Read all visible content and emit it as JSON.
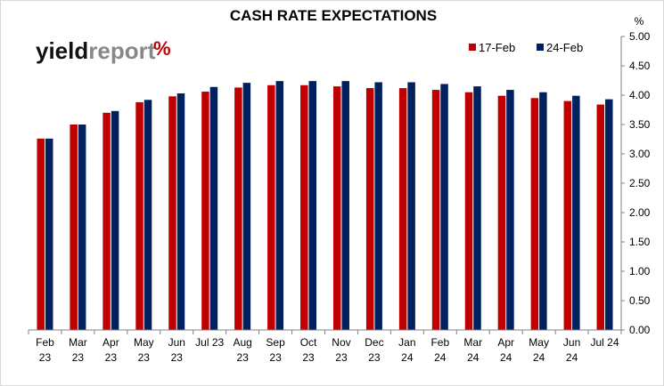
{
  "chart_data": {
    "type": "bar",
    "title": "CASH RATE EXPECTATIONS",
    "unit_label": "%",
    "logo": {
      "part1": "yield",
      "part2": "report",
      "mark": "%"
    },
    "categories": [
      [
        "Feb",
        "23"
      ],
      [
        "Mar",
        "23"
      ],
      [
        "Apr",
        "23"
      ],
      [
        "May",
        "23"
      ],
      [
        "Jun",
        "23"
      ],
      [
        "Jul 23",
        ""
      ],
      [
        "Aug",
        "23"
      ],
      [
        "Sep",
        "23"
      ],
      [
        "Oct",
        "23"
      ],
      [
        "Nov",
        "23"
      ],
      [
        "Dec",
        "23"
      ],
      [
        "Jan",
        "24"
      ],
      [
        "Feb",
        "24"
      ],
      [
        "Mar",
        "24"
      ],
      [
        "Apr",
        "24"
      ],
      [
        "May",
        "24"
      ],
      [
        "Jun",
        "24"
      ],
      [
        "Jul 24",
        ""
      ]
    ],
    "series": [
      {
        "name": "17-Feb",
        "color": "#c00000",
        "values": [
          3.26,
          3.5,
          3.7,
          3.88,
          3.98,
          4.06,
          4.13,
          4.17,
          4.17,
          4.15,
          4.12,
          4.12,
          4.09,
          4.05,
          3.99,
          3.95,
          3.9,
          3.84
        ]
      },
      {
        "name": "24-Feb",
        "color": "#002060",
        "values": [
          3.26,
          3.5,
          3.73,
          3.92,
          4.03,
          4.14,
          4.21,
          4.24,
          4.24,
          4.24,
          4.22,
          4.22,
          4.19,
          4.15,
          4.09,
          4.05,
          3.99,
          3.93
        ]
      }
    ],
    "ylim": [
      0,
      5
    ],
    "yticks": [
      "0.00",
      "0.50",
      "1.00",
      "1.50",
      "2.00",
      "2.50",
      "3.00",
      "3.50",
      "4.00",
      "4.50",
      "5.00"
    ],
    "grid": false,
    "legend_position": "top-right"
  }
}
